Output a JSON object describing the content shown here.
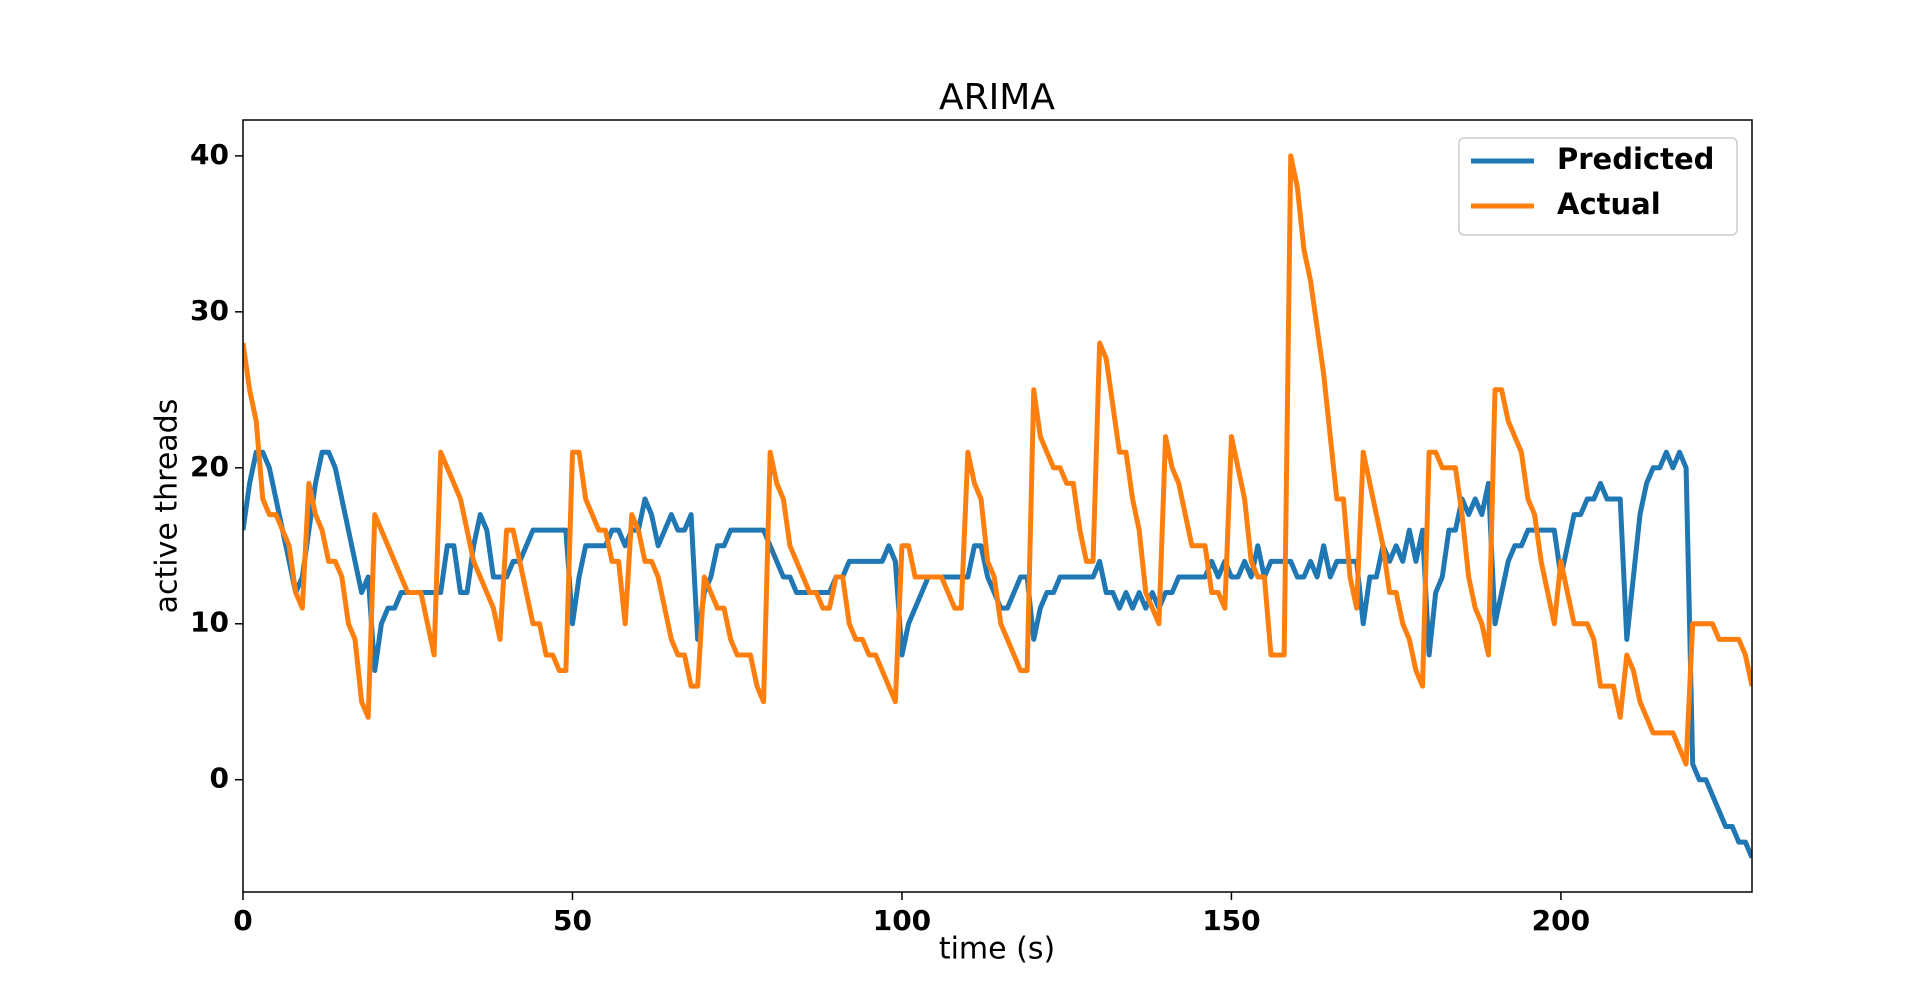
{
  "chart_data": {
    "type": "line",
    "title": "ARIMA",
    "x_label": "time (s)",
    "y_label": "active threads",
    "x": [
      0,
      1,
      2,
      3,
      4,
      5,
      6,
      7,
      8,
      9,
      10,
      11,
      12,
      13,
      14,
      15,
      16,
      17,
      18,
      19,
      20,
      21,
      22,
      23,
      24,
      25,
      26,
      27,
      28,
      29,
      30,
      31,
      32,
      33,
      34,
      35,
      36,
      37,
      38,
      39,
      40,
      41,
      42,
      43,
      44,
      45,
      46,
      47,
      48,
      49,
      50,
      51,
      52,
      53,
      54,
      55,
      56,
      57,
      58,
      59,
      60,
      61,
      62,
      63,
      64,
      65,
      66,
      67,
      68,
      69,
      70,
      71,
      72,
      73,
      74,
      75,
      76,
      77,
      78,
      79,
      80,
      81,
      82,
      83,
      84,
      85,
      86,
      87,
      88,
      89,
      90,
      91,
      92,
      93,
      94,
      95,
      96,
      97,
      98,
      99,
      100,
      101,
      102,
      103,
      104,
      105,
      106,
      107,
      108,
      109,
      110,
      111,
      112,
      113,
      114,
      115,
      116,
      117,
      118,
      119,
      120,
      121,
      122,
      123,
      124,
      125,
      126,
      127,
      128,
      129,
      130,
      131,
      132,
      133,
      134,
      135,
      136,
      137,
      138,
      139,
      140,
      141,
      142,
      143,
      144,
      145,
      146,
      147,
      148,
      149,
      150,
      151,
      152,
      153,
      154,
      155,
      156,
      157,
      158,
      159,
      160,
      161,
      162,
      163,
      164,
      165,
      166,
      167,
      168,
      169,
      170,
      171,
      172,
      173,
      174,
      175,
      176,
      177,
      178,
      179,
      180,
      181,
      182,
      183,
      184,
      185,
      186,
      187,
      188,
      189,
      190,
      191,
      192,
      193,
      194,
      195,
      196,
      197,
      198,
      199,
      200,
      201,
      202,
      203,
      204,
      205,
      206,
      207,
      208,
      209,
      210,
      211,
      212,
      213,
      214,
      215,
      216,
      217,
      218,
      219,
      220,
      221,
      222,
      223,
      224,
      225,
      226,
      227,
      228,
      229
    ],
    "series": [
      {
        "name": "Predicted",
        "color": "#1f77b4",
        "values": [
          16,
          19,
          21,
          21,
          20,
          18,
          16,
          14,
          12,
          13,
          16,
          19,
          21,
          21,
          20,
          18,
          16,
          14,
          12,
          13,
          7,
          10,
          11,
          11,
          12,
          12,
          12,
          12,
          12,
          12,
          12,
          15,
          15,
          12,
          12,
          15,
          17,
          16,
          13,
          13,
          13,
          14,
          14,
          15,
          16,
          16,
          16,
          16,
          16,
          16,
          10,
          13,
          15,
          15,
          15,
          15,
          16,
          16,
          15,
          16,
          16,
          18,
          17,
          15,
          16,
          17,
          16,
          16,
          17,
          9,
          12,
          13,
          15,
          15,
          16,
          16,
          16,
          16,
          16,
          16,
          15,
          14,
          13,
          13,
          12,
          12,
          12,
          12,
          12,
          12,
          13,
          13,
          14,
          14,
          14,
          14,
          14,
          14,
          15,
          14,
          8,
          10,
          11,
          12,
          13,
          13,
          13,
          13,
          13,
          13,
          13,
          15,
          15,
          13,
          12,
          11,
          11,
          12,
          13,
          13,
          9,
          11,
          12,
          12,
          13,
          13,
          13,
          13,
          13,
          13,
          14,
          12,
          12,
          11,
          12,
          11,
          12,
          11,
          12,
          11,
          12,
          12,
          13,
          13,
          13,
          13,
          13,
          14,
          13,
          14,
          13,
          13,
          14,
          13,
          15,
          13,
          14,
          14,
          14,
          14,
          13,
          13,
          14,
          13,
          15,
          13,
          14,
          14,
          14,
          14,
          10,
          13,
          13,
          15,
          14,
          15,
          14,
          16,
          14,
          16,
          8,
          12,
          13,
          16,
          16,
          18,
          17,
          18,
          17,
          19,
          10,
          12,
          14,
          15,
          15,
          16,
          16,
          16,
          16,
          16,
          13,
          15,
          17,
          17,
          18,
          18,
          19,
          18,
          18,
          18,
          9,
          13,
          17,
          19,
          20,
          20,
          21,
          20,
          21,
          20,
          1,
          0,
          0,
          -1,
          -2,
          -3,
          -3,
          -4,
          -4,
          -5
        ]
      },
      {
        "name": "Actual",
        "color": "#ff7f0e",
        "values": [
          28,
          25,
          23,
          18,
          17,
          17,
          16,
          15,
          12,
          11,
          19,
          17,
          16,
          14,
          14,
          13,
          10,
          9,
          5,
          4,
          17,
          16,
          15,
          14,
          13,
          12,
          12,
          12,
          10,
          8,
          21,
          20,
          19,
          18,
          16,
          14,
          13,
          12,
          11,
          9,
          16,
          16,
          14,
          12,
          10,
          10,
          8,
          8,
          7,
          7,
          21,
          21,
          18,
          17,
          16,
          16,
          14,
          14,
          10,
          17,
          16,
          14,
          14,
          13,
          11,
          9,
          8,
          8,
          6,
          6,
          13,
          12,
          11,
          11,
          9,
          8,
          8,
          8,
          6,
          5,
          21,
          19,
          18,
          15,
          14,
          13,
          12,
          12,
          11,
          11,
          13,
          13,
          10,
          9,
          9,
          8,
          8,
          7,
          6,
          5,
          15,
          15,
          13,
          13,
          13,
          13,
          13,
          12,
          11,
          11,
          21,
          19,
          18,
          14,
          13,
          10,
          9,
          8,
          7,
          7,
          25,
          22,
          21,
          20,
          20,
          19,
          19,
          16,
          14,
          14,
          28,
          27,
          24,
          21,
          21,
          18,
          16,
          12,
          11,
          10,
          22,
          20,
          19,
          17,
          15,
          15,
          15,
          12,
          12,
          11,
          22,
          20,
          18,
          14,
          13,
          13,
          8,
          8,
          8,
          40,
          38,
          34,
          32,
          29,
          26,
          22,
          18,
          18,
          13,
          11,
          21,
          19,
          17,
          15,
          12,
          12,
          10,
          9,
          7,
          6,
          21,
          21,
          20,
          20,
          20,
          17,
          13,
          11,
          10,
          8,
          25,
          25,
          23,
          22,
          21,
          18,
          17,
          14,
          12,
          10,
          14,
          12,
          10,
          10,
          10,
          9,
          6,
          6,
          6,
          4,
          8,
          7,
          5,
          4,
          3,
          3,
          3,
          3,
          2,
          1,
          10,
          10,
          10,
          10,
          9,
          9,
          9,
          9,
          8,
          6
        ]
      }
    ],
    "xlim": [
      0,
      229
    ],
    "ylim": [
      -7.2,
      42.3
    ],
    "xticks": [
      0,
      50,
      100,
      150,
      200
    ],
    "yticks": [
      0,
      10,
      20,
      30,
      40
    ],
    "grid": false,
    "legend": "upper right"
  }
}
